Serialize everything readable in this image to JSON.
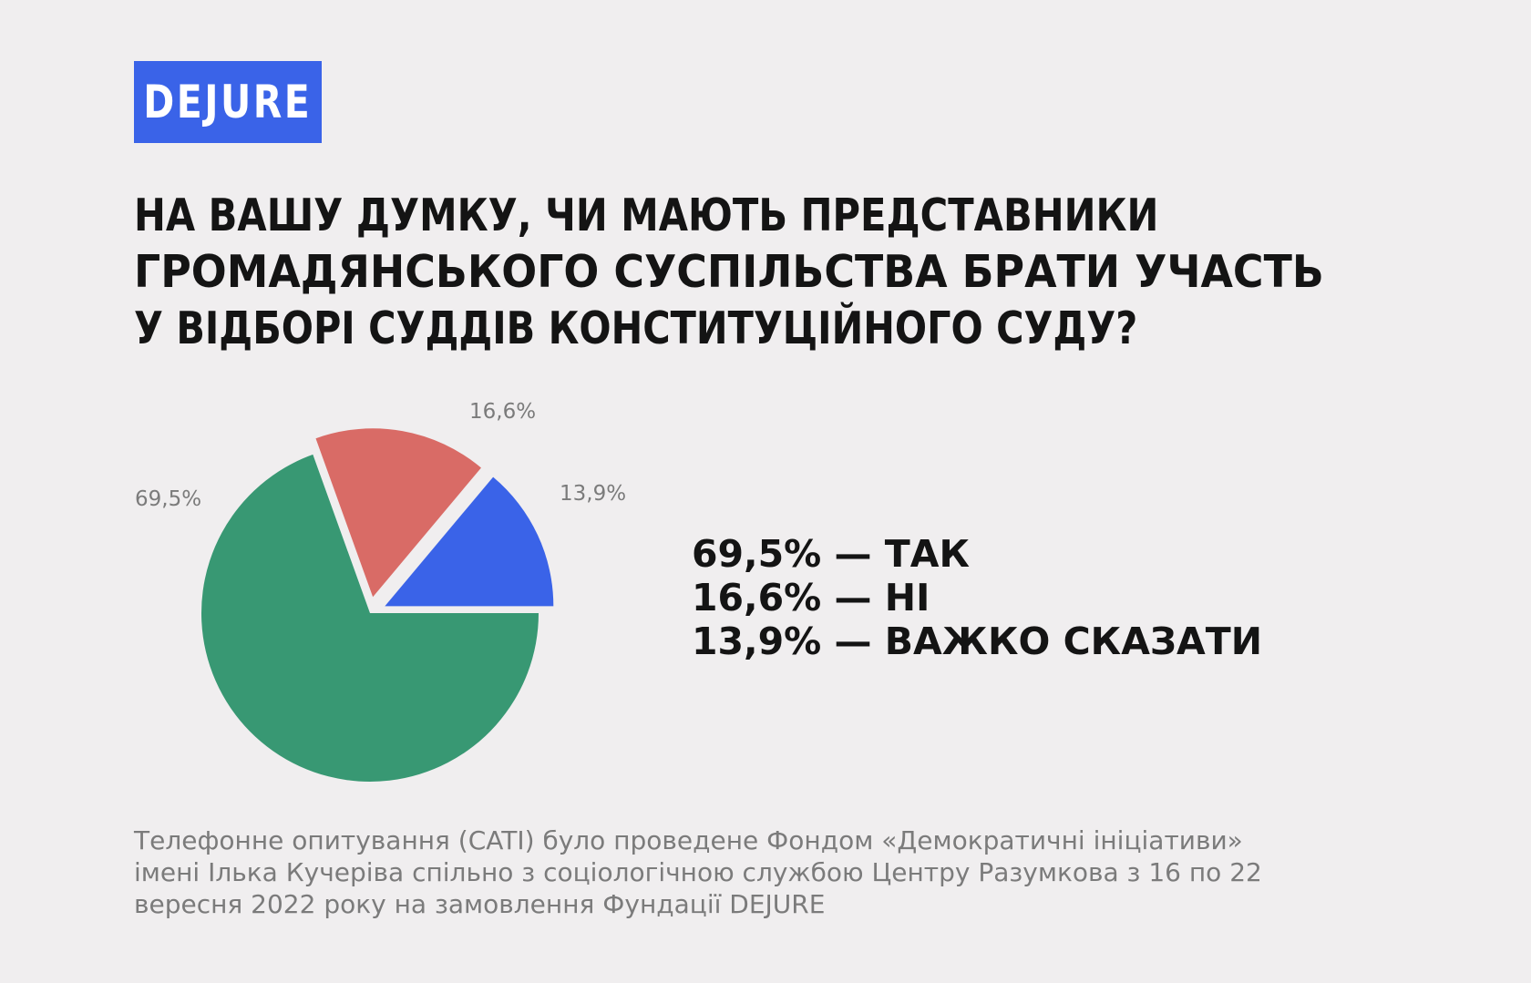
{
  "logo": {
    "text": "DEJURE",
    "color": "#3a63e8"
  },
  "title_lines": [
    "НА ВАШУ ДУМКУ, ЧИ МАЮТЬ ПРЕДСТАВНИКИ",
    "ГРОМАДЯНСЬКОГО СУСПІЛЬСТВА БРАТИ УЧАСТЬ",
    "У ВІДБОРІ СУДДІВ КОНСТИТУЦІЙНОГО СУДУ?"
  ],
  "chart_data": {
    "type": "pie",
    "title": "",
    "categories": [
      "ТАК",
      "НІ",
      "ВАЖКО СКАЗАТИ"
    ],
    "values": [
      69.5,
      16.6,
      13.9
    ],
    "colors": [
      "#389873",
      "#d96b66",
      "#3a63e8"
    ],
    "data_labels": [
      "69,5%",
      "16,6%",
      "13,9%"
    ],
    "exploded": [
      false,
      true,
      true
    ]
  },
  "legend": [
    "69,5% — ТАК",
    "16,6% — НІ",
    "13,9% — ВАЖКО СКАЗАТИ"
  ],
  "footnote_lines": [
    "Телефонне опитування (CATI) було проведене Фондом «Демократичні ініціативи»",
    "імені Ілька Кучеріва спільно з соціологічною службою Центру Разумкова з 16 по 22",
    "вересня 2022 року на замовлення Фундації DEJURE"
  ]
}
